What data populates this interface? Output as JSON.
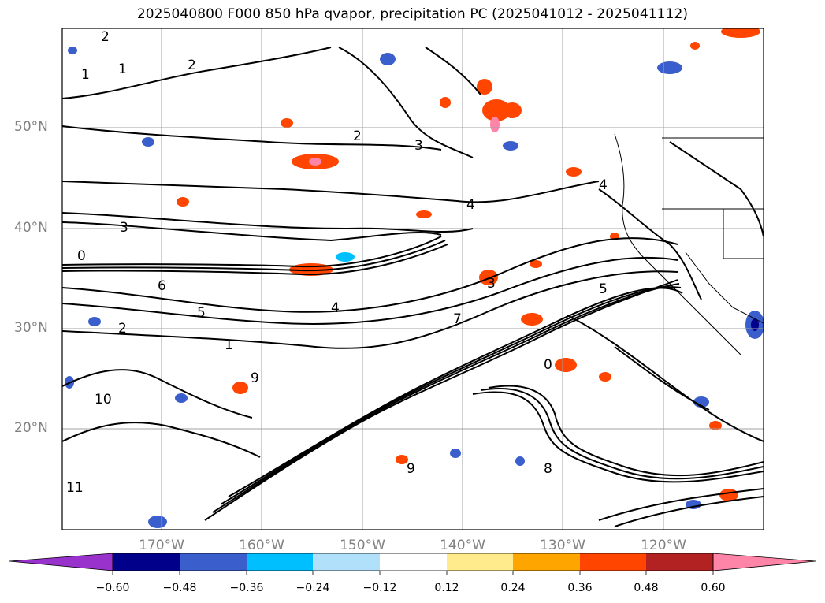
{
  "title": "2025040800 F000 850 hPa qvapor, precipitation PC (2025041012 - 2025041112)",
  "lat_labels": [
    "50°N",
    "40°N",
    "30°N",
    "20°N"
  ],
  "lon_labels": [
    "170°W",
    "160°W",
    "150°W",
    "140°W",
    "130°W",
    "120°W"
  ],
  "colorbar": {
    "ticks": [
      "−0.60",
      "−0.48",
      "−0.36",
      "−0.24",
      "−0.12",
      "0.12",
      "0.24",
      "0.36",
      "0.48",
      "0.60"
    ],
    "colors": [
      "#9932cc",
      "#00008b",
      "#3a5fcd",
      "#00bfff",
      "#b0e0fa",
      "#ffffff",
      "#ffeb8c",
      "#ffa500",
      "#ff4500",
      "#b22222",
      "#ff85a8"
    ]
  },
  "contour_labels": [
    "2",
    "1",
    "1",
    "2",
    "2",
    "3",
    "3",
    "3",
    "4",
    "4",
    "4",
    "5",
    "6",
    "5",
    "2",
    "1",
    "7",
    "9",
    "10",
    "11",
    "0",
    "0",
    "8",
    "9"
  ],
  "colors": {
    "frame": "#000000",
    "grid": "#a0a0a0",
    "contour": "#000000",
    "axis_label": "#808080"
  }
}
